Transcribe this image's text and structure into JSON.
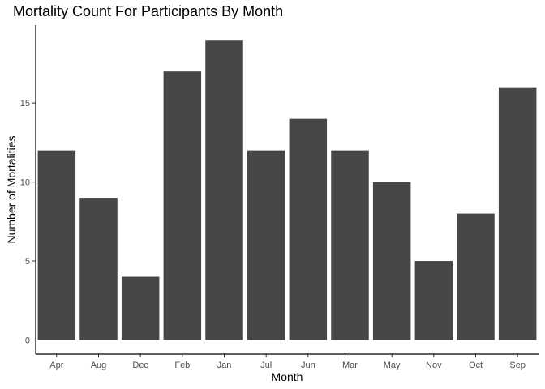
{
  "chart_data": {
    "type": "bar",
    "title": "Mortality Count For Participants By Month",
    "xlabel": "Month",
    "ylabel": "Number of Mortalities",
    "categories": [
      "Apr",
      "Aug",
      "Dec",
      "Feb",
      "Jan",
      "Jul",
      "Jun",
      "Mar",
      "May",
      "Nov",
      "Oct",
      "Sep"
    ],
    "values": [
      12,
      9,
      4,
      17,
      19,
      12,
      14,
      12,
      10,
      5,
      8,
      16
    ],
    "yticks": [
      0,
      5,
      10,
      15
    ],
    "ylim": [
      0,
      19.95
    ],
    "grid": false,
    "legend": "none",
    "bar_color": "#474747",
    "axis_color": "#000000",
    "tick_label_color": "#4d4d4d"
  }
}
